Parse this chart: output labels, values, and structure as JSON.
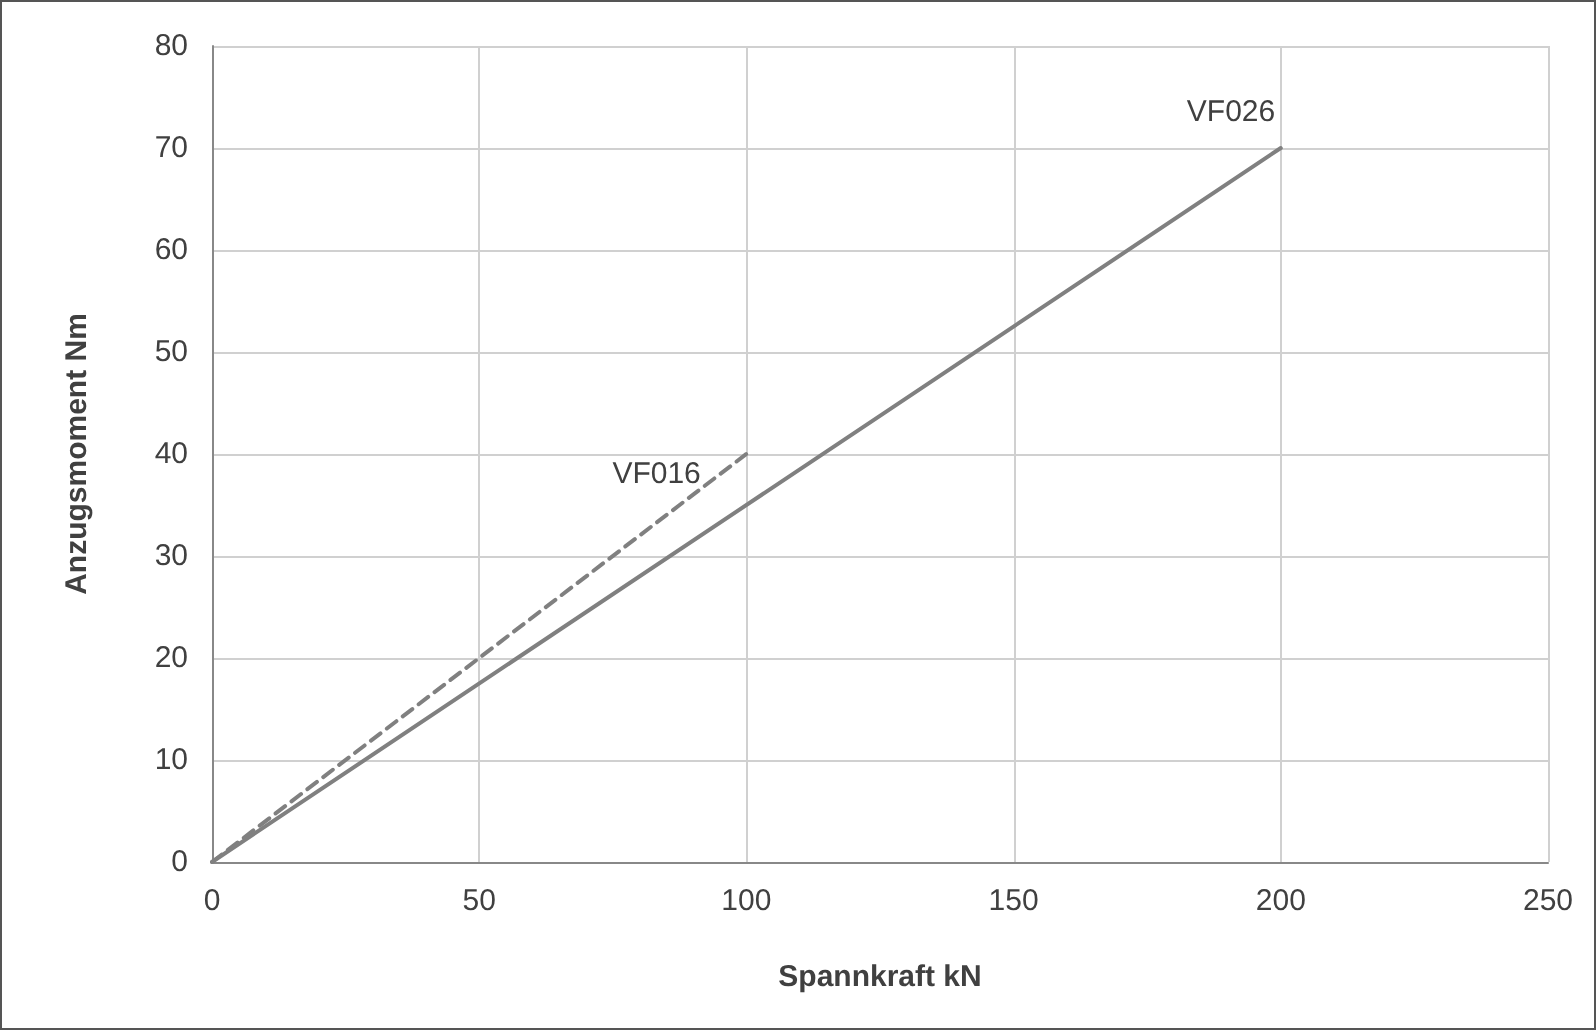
{
  "chart_data": {
    "type": "line",
    "xlabel": "Spannkraft kN",
    "ylabel": "Anzugsmoment Nm",
    "series": [
      {
        "name": "VF016",
        "color": "#808080",
        "x": [
          0,
          100
        ],
        "values": [
          0,
          40
        ],
        "line_style": "dashed"
      },
      {
        "name": "VF026",
        "color": "#808080",
        "x": [
          0,
          200
        ],
        "values": [
          0,
          70
        ],
        "line_style": "solid"
      }
    ],
    "xlim": [
      0,
      250
    ],
    "xticks": [
      0,
      50,
      100,
      150,
      200,
      250
    ],
    "ylim": [
      0,
      80
    ],
    "yticks": [
      0,
      10,
      20,
      30,
      40,
      50,
      60,
      70,
      80
    ],
    "grid": true,
    "legend": false,
    "marker": "none"
  }
}
